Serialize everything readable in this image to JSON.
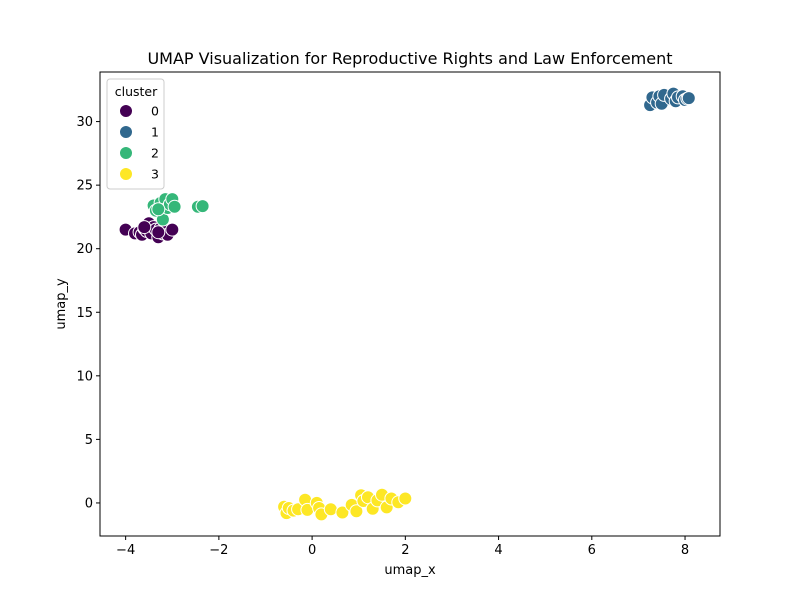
{
  "chart_data": {
    "type": "scatter",
    "title": "UMAP Visualization for Reproductive Rights and Law Enforcement",
    "xlabel": "umap_x",
    "ylabel": "umap_y",
    "xlim": [
      -4.55,
      8.75
    ],
    "ylim": [
      -2.6,
      33.9
    ],
    "xticks": [
      -4,
      -2,
      0,
      2,
      4,
      6,
      8
    ],
    "xtick_labels": [
      "−4",
      "−2",
      "0",
      "2",
      "4",
      "6",
      "8"
    ],
    "yticks": [
      0,
      5,
      10,
      15,
      20,
      25,
      30
    ],
    "ytick_labels": [
      "0",
      "5",
      "10",
      "15",
      "20",
      "25",
      "30"
    ],
    "grid": false,
    "legend": {
      "title": "cluster",
      "placement": "top-left"
    },
    "series": [
      {
        "name": "0",
        "color": "#440154",
        "points": [
          [
            -4.0,
            21.5
          ],
          [
            -3.8,
            21.2
          ],
          [
            -3.7,
            21.3
          ],
          [
            -3.65,
            21.1
          ],
          [
            -3.6,
            21.6
          ],
          [
            -3.55,
            21.4
          ],
          [
            -3.5,
            22.0
          ],
          [
            -3.45,
            21.2
          ],
          [
            -3.4,
            21.7
          ],
          [
            -3.35,
            21.5
          ],
          [
            -3.3,
            20.9
          ],
          [
            -3.25,
            21.6
          ],
          [
            -3.2,
            21.2
          ],
          [
            -3.15,
            21.4
          ],
          [
            -3.1,
            21.1
          ],
          [
            -3.0,
            21.5
          ],
          [
            -3.6,
            21.7
          ],
          [
            -3.3,
            21.3
          ]
        ]
      },
      {
        "name": "1",
        "color": "#31688e",
        "points": [
          [
            7.25,
            31.3
          ],
          [
            7.3,
            31.9
          ],
          [
            7.4,
            31.5
          ],
          [
            7.45,
            32.0
          ],
          [
            7.5,
            31.4
          ],
          [
            7.55,
            32.1
          ],
          [
            7.7,
            31.8
          ],
          [
            7.75,
            32.2
          ],
          [
            7.8,
            31.6
          ],
          [
            7.85,
            31.9
          ],
          [
            7.95,
            32.0
          ],
          [
            8.0,
            31.7
          ],
          [
            8.05,
            31.8
          ],
          [
            8.08,
            31.85
          ]
        ]
      },
      {
        "name": "2",
        "color": "#35b779",
        "points": [
          [
            -3.4,
            23.4
          ],
          [
            -3.35,
            23.0
          ],
          [
            -3.25,
            23.6
          ],
          [
            -3.2,
            22.3
          ],
          [
            -3.15,
            23.9
          ],
          [
            -3.1,
            23.2
          ],
          [
            -3.05,
            23.5
          ],
          [
            -3.0,
            23.9
          ],
          [
            -2.95,
            23.3
          ],
          [
            -3.3,
            23.1
          ],
          [
            -2.45,
            23.3
          ],
          [
            -2.35,
            23.35
          ]
        ]
      },
      {
        "name": "3",
        "color": "#fde725",
        "points": [
          [
            -0.6,
            -0.3
          ],
          [
            -0.55,
            -0.8
          ],
          [
            -0.5,
            -0.4
          ],
          [
            -0.4,
            -0.6
          ],
          [
            -0.3,
            -0.5
          ],
          [
            -0.15,
            0.25
          ],
          [
            -0.1,
            -0.55
          ],
          [
            0.1,
            0.0
          ],
          [
            0.15,
            -0.4
          ],
          [
            0.2,
            -0.9
          ],
          [
            0.4,
            -0.5
          ],
          [
            0.65,
            -0.75
          ],
          [
            0.85,
            -0.15
          ],
          [
            0.95,
            -0.65
          ],
          [
            1.05,
            0.6
          ],
          [
            1.1,
            0.15
          ],
          [
            1.2,
            0.45
          ],
          [
            1.3,
            -0.45
          ],
          [
            1.4,
            0.2
          ],
          [
            1.5,
            0.65
          ],
          [
            1.6,
            -0.35
          ],
          [
            1.7,
            0.35
          ],
          [
            1.85,
            0.05
          ],
          [
            2.0,
            0.4
          ],
          [
            2.0,
            0.35
          ]
        ]
      }
    ]
  }
}
